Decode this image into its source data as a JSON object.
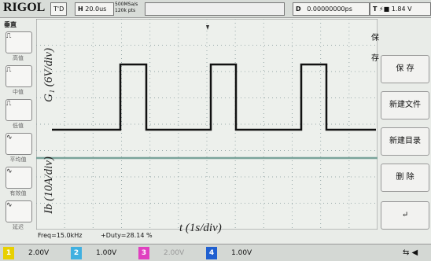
{
  "toolbar": {
    "brand": "RIGOL",
    "trigger_mode": "T'D",
    "h_label": "H",
    "timebase": "20.0us",
    "sample_rate": "500MSa/s",
    "memory": "120k pts",
    "d_label": "D",
    "delay": "0.00000000ps",
    "t_label": "T",
    "trigger_level": "1.84 V"
  },
  "left_menu": {
    "title": "垂直",
    "items": [
      "高值",
      "中值",
      "低值",
      "平均值",
      "有效值",
      "延迟"
    ]
  },
  "right_menu": {
    "title": "保存",
    "items": [
      "保 存",
      "新建文件",
      "新建目录",
      "删 除"
    ]
  },
  "measurements": [
    "Freq=15.0kHz",
    "+Duty=28.14 %"
  ],
  "annotations": {
    "y_upper": "G₁ (6V/div)",
    "y_lower": "Ib (10A/div)",
    "x": "t (1s/div)"
  },
  "channels": [
    {
      "number": "1",
      "scale": "2.00V"
    },
    {
      "number": "2",
      "scale": "1.00V"
    },
    {
      "number": "3",
      "scale": "2.00V"
    },
    {
      "number": "4",
      "scale": "1.00V"
    }
  ]
}
